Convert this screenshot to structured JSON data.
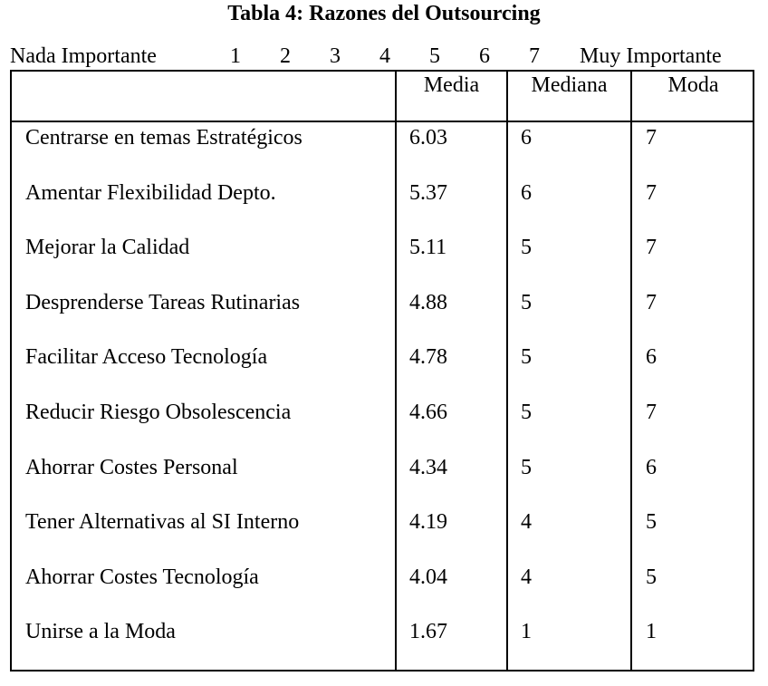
{
  "title": "Tabla 4: Razones del Outsourcing",
  "scale": {
    "left_label": "Nada Importante",
    "points": [
      "1",
      "2",
      "3",
      "4",
      "5",
      "6",
      "7"
    ],
    "right_label": "Muy Importante"
  },
  "table": {
    "columns": [
      "Media",
      "Mediana",
      "Moda"
    ],
    "rows": [
      {
        "label": "Centrarse en temas Estratégicos",
        "media": "6.03",
        "mediana": "6",
        "moda": "7"
      },
      {
        "label": "Amentar Flexibilidad Depto.",
        "media": "5.37",
        "mediana": "6",
        "moda": "7"
      },
      {
        "label": "Mejorar la Calidad",
        "media": "5.11",
        "mediana": "5",
        "moda": "7"
      },
      {
        "label": "Desprenderse Tareas Rutinarias",
        "media": "4.88",
        "mediana": "5",
        "moda": "7"
      },
      {
        "label": "Facilitar Acceso Tecnología",
        "media": "4.78",
        "mediana": "5",
        "moda": "6"
      },
      {
        "label": "Reducir Riesgo Obsolescencia",
        "media": "4.66",
        "mediana": "5",
        "moda": "7"
      },
      {
        "label": "Ahorrar Costes Personal",
        "media": "4.34",
        "mediana": "5",
        "moda": "6"
      },
      {
        "label": "Tener Alternativas al SI Interno",
        "media": "4.19",
        "mediana": "4",
        "moda": "5"
      },
      {
        "label": "Ahorrar Costes Tecnología",
        "media": "4.04",
        "mediana": "4",
        "moda": "5"
      },
      {
        "label": "Unirse a la Moda",
        "media": "1.67",
        "mediana": "1",
        "moda": "1"
      }
    ]
  }
}
